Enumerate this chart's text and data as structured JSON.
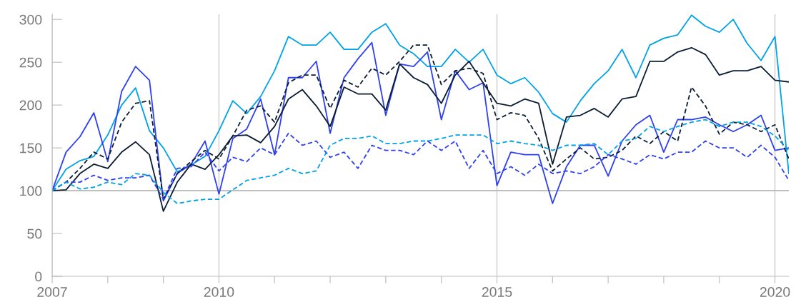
{
  "chart_data": {
    "type": "line",
    "x": [
      2007,
      2007.25,
      2007.5,
      2007.75,
      2008,
      2008.25,
      2008.5,
      2008.75,
      2009,
      2009.25,
      2009.5,
      2009.75,
      2010,
      2010.25,
      2010.5,
      2010.75,
      2011,
      2011.25,
      2011.5,
      2011.75,
      2012,
      2012.25,
      2012.5,
      2012.75,
      2013,
      2013.25,
      2013.5,
      2013.75,
      2014,
      2014.25,
      2014.5,
      2014.75,
      2015,
      2015.25,
      2015.5,
      2015.75,
      2016,
      2016.25,
      2016.5,
      2016.75,
      2017,
      2017.25,
      2017.5,
      2017.75,
      2018,
      2018.25,
      2018.5,
      2018.75,
      2019,
      2019.25,
      2019.5,
      2019.75,
      2020,
      2020.25
    ],
    "series": [
      {
        "color": "#00a3e8",
        "line_style": "solid",
        "values": [
          100,
          125,
          135,
          140,
          165,
          200,
          220,
          170,
          150,
          122,
          130,
          140,
          170,
          205,
          190,
          210,
          240,
          280,
          270,
          270,
          285,
          265,
          265,
          285,
          295,
          270,
          260,
          245,
          245,
          265,
          250,
          265,
          235,
          225,
          232,
          215,
          190,
          180,
          205,
          225,
          240,
          265,
          232,
          270,
          278,
          282,
          305,
          292,
          285,
          300,
          272,
          252,
          280,
          120
        ]
      },
      {
        "color": "#2e40f0",
        "line_style": "solid",
        "values": [
          100,
          145,
          163,
          191,
          134,
          216,
          245,
          229,
          88,
          120,
          131,
          158,
          96,
          161,
          172,
          207,
          142,
          232,
          232,
          251,
          167,
          232,
          254,
          273,
          188,
          248,
          245,
          262,
          183,
          240,
          218,
          226,
          106,
          145,
          142,
          142,
          85,
          128,
          153,
          153,
          117,
          158,
          177,
          188,
          145,
          183,
          183,
          186,
          177,
          169,
          177,
          188,
          147,
          150
        ]
      },
      {
        "color": "#0b1d33",
        "line_style": "solid",
        "values": [
          100,
          101,
          120,
          131,
          126,
          145,
          157,
          142,
          76,
          110,
          131,
          125,
          142,
          164,
          165,
          156,
          175,
          207,
          218,
          199,
          175,
          221,
          213,
          213,
          194,
          248,
          232,
          224,
          202,
          235,
          251,
          226,
          202,
          199,
          207,
          202,
          131,
          186,
          188,
          196,
          186,
          207,
          210,
          251,
          251,
          262,
          267,
          259,
          235,
          240,
          240,
          245,
          229,
          227
        ]
      },
      {
        "color": "#0b1d33",
        "line_style": "dashed",
        "values": [
          100,
          110,
          126,
          145,
          137,
          180,
          202,
          205,
          90,
          120,
          134,
          147,
          137,
          164,
          194,
          199,
          180,
          226,
          235,
          235,
          196,
          229,
          221,
          243,
          235,
          251,
          270,
          270,
          224,
          240,
          243,
          237,
          183,
          191,
          188,
          161,
          123,
          137,
          150,
          137,
          139,
          147,
          164,
          155,
          169,
          158,
          221,
          199,
          166,
          180,
          177,
          169,
          177,
          137
        ]
      },
      {
        "color": "#2e40f0",
        "line_style": "dashed",
        "values": [
          100,
          110,
          110,
          118,
          112,
          115,
          115,
          118,
          90,
          126,
          128,
          145,
          123,
          139,
          134,
          150,
          142,
          167,
          153,
          158,
          139,
          145,
          126,
          153,
          147,
          147,
          142,
          158,
          147,
          158,
          126,
          147,
          120,
          128,
          118,
          131,
          120,
          123,
          120,
          128,
          142,
          137,
          131,
          142,
          137,
          145,
          145,
          158,
          150,
          150,
          139,
          153,
          139,
          112
        ]
      },
      {
        "color": "#00a3e8",
        "line_style": "dashed",
        "values": [
          100,
          110,
          102,
          104,
          110,
          107,
          120,
          118,
          98,
          85,
          88,
          90,
          90,
          101,
          112,
          115,
          118,
          126,
          120,
          123,
          153,
          161,
          161,
          164,
          155,
          155,
          158,
          158,
          161,
          165,
          165,
          165,
          155,
          158,
          155,
          153,
          147,
          153,
          153,
          155,
          142,
          158,
          161,
          175,
          169,
          175,
          180,
          183,
          175,
          180,
          180,
          175,
          164,
          147
        ]
      }
    ],
    "xlim": [
      2007,
      2020.25
    ],
    "xticks": [
      {
        "value": 2007,
        "label": "2007"
      },
      {
        "value": 2008,
        "label": null
      },
      {
        "value": 2009,
        "label": null
      },
      {
        "value": 2010,
        "label": "2010"
      },
      {
        "value": 2011,
        "label": null
      },
      {
        "value": 2012,
        "label": null
      },
      {
        "value": 2013,
        "label": null
      },
      {
        "value": 2014,
        "label": null
      },
      {
        "value": 2015,
        "label": "2015"
      },
      {
        "value": 2016,
        "label": null
      },
      {
        "value": 2017,
        "label": null
      },
      {
        "value": 2018,
        "label": null
      },
      {
        "value": 2019,
        "label": null
      },
      {
        "value": 2020,
        "label": "2020"
      }
    ],
    "ylim": [
      0,
      306
    ],
    "yticks": [
      0,
      50,
      100,
      150,
      200,
      250,
      300
    ],
    "ref_lines": [
      {
        "axis": "y",
        "value": 100,
        "color": "#aaaaaa"
      }
    ],
    "grid": "x"
  }
}
